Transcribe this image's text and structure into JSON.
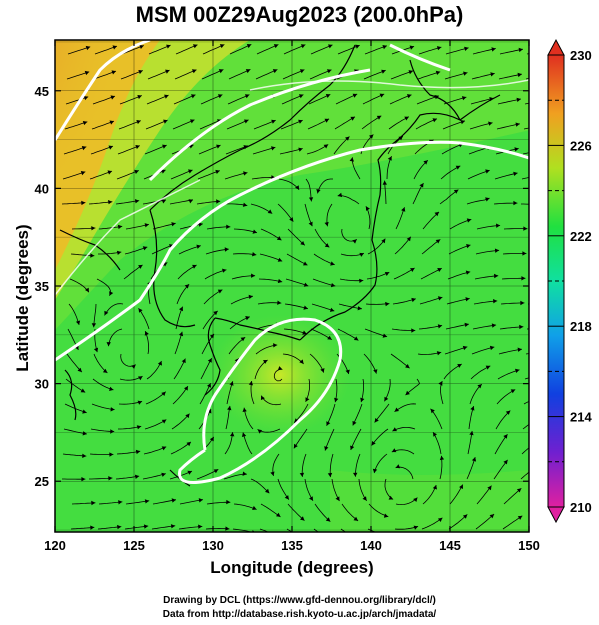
{
  "title": "MSM 00Z29Aug2023 (200.0hPa)",
  "x_axis": {
    "label": "Longitude (degrees)",
    "range": [
      120,
      150
    ],
    "ticks": [
      "120",
      "125",
      "130",
      "135",
      "140",
      "145",
      "150"
    ]
  },
  "y_axis": {
    "label": "Latitude  (degrees)",
    "range": [
      22.4,
      47.6
    ],
    "ticks": [
      "25",
      "30",
      "35",
      "40",
      "45"
    ]
  },
  "colorbar": {
    "range": [
      210,
      230
    ],
    "tick_labels": [
      "230",
      "226",
      "222",
      "218",
      "214",
      "210"
    ]
  },
  "grid": true,
  "credits": {
    "line1": "Drawing by DCL (https://www.gfd-dennou.org/library/dcl/)",
    "line2": "Data from http://database.rish.kyoto-u.ac.jp/arch/jmadata/"
  },
  "colors": {
    "field_main": "#3fe040",
    "field_warm": "#e8b828",
    "field_hot": "#e24020",
    "contour": "#ffffff",
    "coastline": "#000000"
  }
}
